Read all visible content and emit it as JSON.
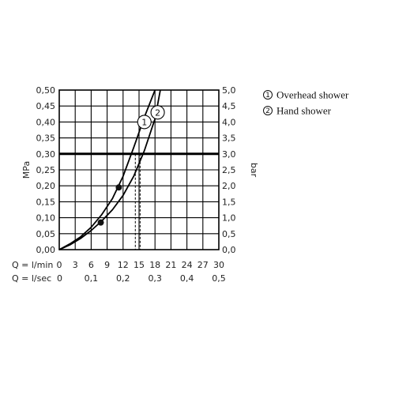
{
  "chart_data": {
    "type": "line",
    "title": "",
    "ylabel_left": "MPa",
    "ylabel_right": "bar",
    "ylim": [
      0,
      0.5
    ],
    "xlim": [
      0,
      30
    ],
    "grid": true,
    "x_ticks": [
      "0",
      "3",
      "6",
      "9",
      "12",
      "15",
      "18",
      "21",
      "24",
      "27",
      "30"
    ],
    "x2_ticks": [
      "0",
      "0,1",
      "0,2",
      "0,3",
      "0,4",
      "0,5"
    ],
    "y_ticks_left": [
      "0,00",
      "0,05",
      "0,10",
      "0,15",
      "0,20",
      "0,25",
      "0,30",
      "0,35",
      "0,40",
      "0,45",
      "0,50"
    ],
    "y_ticks_right": [
      "0,0",
      "0,5",
      "1,0",
      "1,5",
      "2,0",
      "2,5",
      "3,0",
      "3,5",
      "4,0",
      "4,5",
      "5,0"
    ],
    "row_labels": [
      "Q = l/min",
      "Q = l/sec"
    ],
    "reference_line": {
      "y": 0.3
    },
    "legend": [
      {
        "marker": "1",
        "text": "Overhead shower"
      },
      {
        "marker": "2",
        "text": "Hand shower"
      }
    ],
    "series": [
      {
        "marker": "1",
        "x": [
          0,
          2,
          4,
          6,
          8,
          10,
          12,
          14,
          16,
          18
        ],
        "y": [
          0,
          0.018,
          0.04,
          0.07,
          0.11,
          0.16,
          0.23,
          0.32,
          0.415,
          0.5
        ],
        "label_at": {
          "x": 16.0,
          "y": 0.4
        }
      },
      {
        "marker": "2",
        "x": [
          0,
          2,
          4,
          6,
          8,
          10,
          12,
          14,
          16,
          18,
          19
        ],
        "y": [
          0,
          0.015,
          0.035,
          0.06,
          0.09,
          0.125,
          0.17,
          0.23,
          0.31,
          0.41,
          0.5
        ],
        "label_at": {
          "x": 18.5,
          "y": 0.43
        }
      }
    ],
    "points": [
      {
        "x": 7.8,
        "y": 0.085
      },
      {
        "x": 11.2,
        "y": 0.195
      }
    ],
    "dashed_verticals": [
      {
        "x": 14.3,
        "y": 0.3
      },
      {
        "x": 15.2,
        "y": 0.3
      }
    ]
  }
}
